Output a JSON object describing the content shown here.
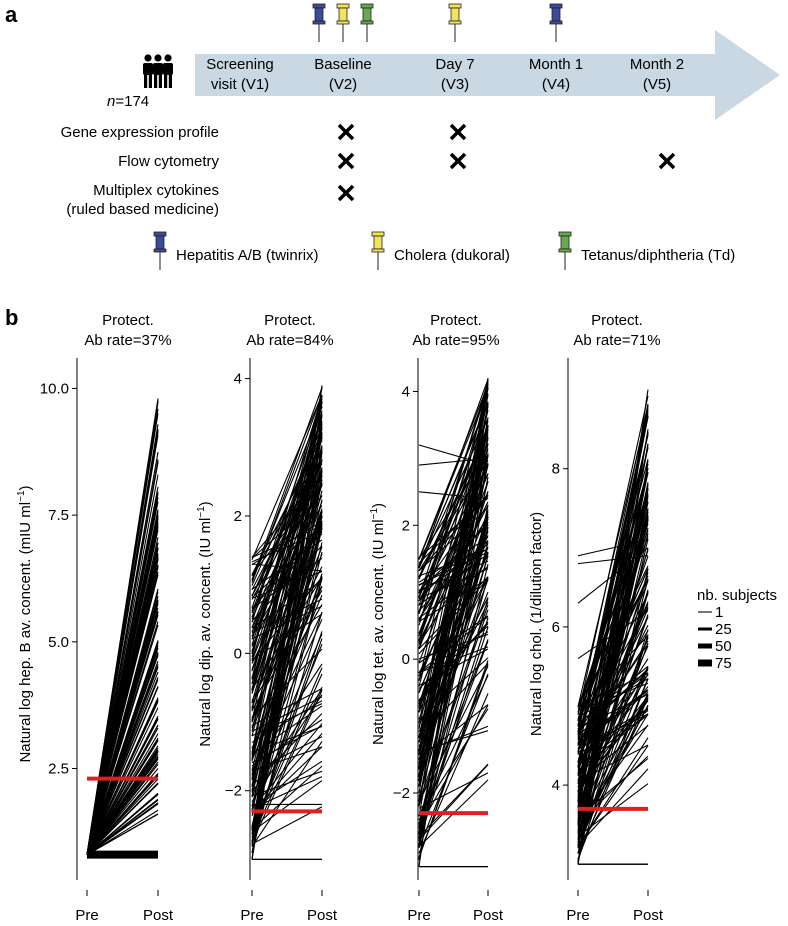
{
  "panel_a": {
    "letter": "a",
    "cohort": {
      "n_prefix": "n",
      "n_value": "=174"
    },
    "timeline": [
      {
        "line1": "Screening",
        "line2": "visit (V1)"
      },
      {
        "line1": "Baseline",
        "line2": "(V2)"
      },
      {
        "line1": "Day 7",
        "line2": "(V3)"
      },
      {
        "line1": "Month 1",
        "line2": "(V4)"
      },
      {
        "line1": "Month 2",
        "line2": "(V5)"
      }
    ],
    "vaccination_pins": [
      {
        "visit": 1,
        "vaccine": "hepatitis",
        "offset": -1
      },
      {
        "visit": 1,
        "vaccine": "cholera",
        "offset": 0
      },
      {
        "visit": 1,
        "vaccine": "tetanus",
        "offset": 1
      },
      {
        "visit": 2,
        "vaccine": "cholera",
        "offset": 0
      },
      {
        "visit": 3,
        "vaccine": "hepatitis",
        "offset": 0
      }
    ],
    "assays": [
      {
        "label": "Gene expression profile",
        "marks": [
          1,
          2
        ]
      },
      {
        "label": "Flow cytometry",
        "marks": [
          1,
          2,
          4
        ]
      },
      {
        "label": "Multiplex cytokines",
        "label2": "(ruled based medicine)",
        "marks": [
          1
        ]
      }
    ],
    "legend": [
      {
        "key": "hepatitis",
        "label": "Hepatitis A/B (twinrix)",
        "color": "#3b4a9a"
      },
      {
        "key": "cholera",
        "label": "Cholera (dukoral)",
        "color": "#f1e35a"
      },
      {
        "key": "tetanus",
        "label": "Tetanus/diphtheria (Td)",
        "color": "#6aa84f"
      }
    ],
    "arrow_color": "#c9d8e3"
  },
  "panel_b": {
    "letter": "b",
    "threshold_color": "#e02020",
    "xticks": [
      "Pre",
      "Post"
    ],
    "legend": {
      "title": "nb. subjects",
      "entries": [
        {
          "label": "1",
          "value": 1
        },
        {
          "label": "25",
          "value": 25
        },
        {
          "label": "50",
          "value": 50
        },
        {
          "label": "75",
          "value": 75
        }
      ]
    }
  },
  "chart_data": [
    {
      "type": "line",
      "name": "hepatitis-b",
      "title_line1": "Protect.",
      "title_line2": "Ab rate=37%",
      "ylabel_main": "Natural log hep. B av. concent. (mIU ml",
      "ylabel_sup": "−1",
      "ylabel_end": ")",
      "ylim": [
        0.3,
        10.6
      ],
      "yticks": [
        {
          "v": 2.5,
          "l": "2.5"
        },
        {
          "v": 5.0,
          "l": "5.0"
        },
        {
          "v": 7.5,
          "l": "7.5"
        },
        {
          "v": 10.0,
          "l": "10.0"
        }
      ],
      "threshold": 2.3,
      "floor": 0.8,
      "floor_width": 8,
      "pre_range": [
        0.8,
        0.8
      ],
      "post_range": [
        1.6,
        9.8
      ],
      "pairs": [
        [
          0.8,
          9.8
        ],
        [
          0.8,
          9.2
        ],
        [
          0.8,
          8.6
        ],
        [
          0.8,
          8.3
        ],
        [
          0.8,
          5.9
        ],
        [
          0.8,
          5.6
        ],
        [
          0.8,
          5.4
        ],
        [
          0.8,
          5.0
        ],
        [
          0.8,
          4.8
        ],
        [
          0.8,
          4.5
        ],
        [
          0.8,
          4.3
        ],
        [
          0.8,
          4.1
        ],
        [
          0.8,
          3.9
        ],
        [
          0.8,
          3.7
        ],
        [
          0.8,
          3.5
        ],
        [
          0.8,
          3.3
        ],
        [
          0.8,
          3.1
        ],
        [
          0.8,
          2.9
        ],
        [
          0.8,
          2.7
        ],
        [
          0.8,
          2.5
        ],
        [
          0.8,
          2.2
        ],
        [
          0.8,
          2.0
        ],
        [
          0.8,
          1.8
        ],
        [
          0.8,
          1.6
        ]
      ],
      "n_random": 110,
      "seed": 11
    },
    {
      "type": "line",
      "name": "diphtheria",
      "title_line1": "Protect.",
      "title_line2": "Ab rate=84%",
      "ylabel_main": "Natural log dip. av. concent. (IU ml",
      "ylabel_sup": "−1",
      "ylabel_end": ")",
      "ylim": [
        -3.3,
        4.3
      ],
      "yticks": [
        {
          "v": -2,
          "l": "−2"
        },
        {
          "v": 0,
          "l": "0"
        },
        {
          "v": 2,
          "l": "2"
        },
        {
          "v": 4,
          "l": "4"
        }
      ],
      "threshold": -2.3,
      "floor": -3.0,
      "pre_range": [
        -3.0,
        1.4
      ],
      "post_range": [
        -2.5,
        3.9
      ],
      "pairs": [
        [
          -3.0,
          3.9
        ],
        [
          -2.8,
          3.7
        ],
        [
          -3.0,
          3.2
        ],
        [
          -2.0,
          3.0
        ],
        [
          0.5,
          2.8
        ],
        [
          1.4,
          2.6
        ],
        [
          1.3,
          1.2
        ],
        [
          -3.0,
          -3.0
        ],
        [
          -2.2,
          -2.2
        ]
      ],
      "n_random": 150,
      "seed": 23
    },
    {
      "type": "line",
      "name": "tetanus",
      "title_line1": "Protect.",
      "title_line2": "Ab rate=95%",
      "ylabel_main": "Natural log tet. av. concent. (IU ml",
      "ylabel_sup": "−1",
      "ylabel_end": ")",
      "ylim": [
        -3.3,
        4.5
      ],
      "yticks": [
        {
          "v": -2,
          "l": "−2"
        },
        {
          "v": 0,
          "l": "0"
        },
        {
          "v": 2,
          "l": "2"
        },
        {
          "v": 4,
          "l": "4"
        }
      ],
      "threshold": -2.3,
      "floor": -3.1,
      "pre_range": [
        -3.1,
        1.6
      ],
      "post_range": [
        -2.0,
        4.2
      ],
      "pairs": [
        [
          -3.1,
          4.2
        ],
        [
          1.5,
          4.1
        ],
        [
          3.2,
          2.9
        ],
        [
          2.9,
          3.0
        ],
        [
          2.5,
          2.4
        ],
        [
          -3.1,
          -3.1
        ],
        [
          1.4,
          3.8
        ],
        [
          0.8,
          3.5
        ]
      ],
      "n_random": 150,
      "seed": 37
    },
    {
      "type": "line",
      "name": "cholera",
      "title_line1": "Protect.",
      "title_line2": "Ab rate=71%",
      "ylabel_main": "Natural log chol. (1/dilution factor)",
      "ylabel_sup": "",
      "ylabel_end": "",
      "ylim": [
        2.8,
        9.4
      ],
      "yticks": [
        {
          "v": 4,
          "l": "4"
        },
        {
          "v": 6,
          "l": "6"
        },
        {
          "v": 8,
          "l": "8"
        }
      ],
      "threshold": 3.7,
      "floor": 3.0,
      "pre_range": [
        3.0,
        5.0
      ],
      "post_range": [
        3.9,
        9.0
      ],
      "pairs": [
        [
          3.0,
          9.0
        ],
        [
          3.0,
          8.5
        ],
        [
          3.0,
          8.1
        ],
        [
          6.9,
          7.1
        ],
        [
          6.8,
          6.9
        ],
        [
          6.3,
          7.0
        ],
        [
          5.6,
          6.2
        ],
        [
          3.0,
          3.0
        ],
        [
          3.2,
          7.8
        ],
        [
          3.5,
          7.5
        ]
      ],
      "n_random": 140,
      "seed": 53
    }
  ]
}
